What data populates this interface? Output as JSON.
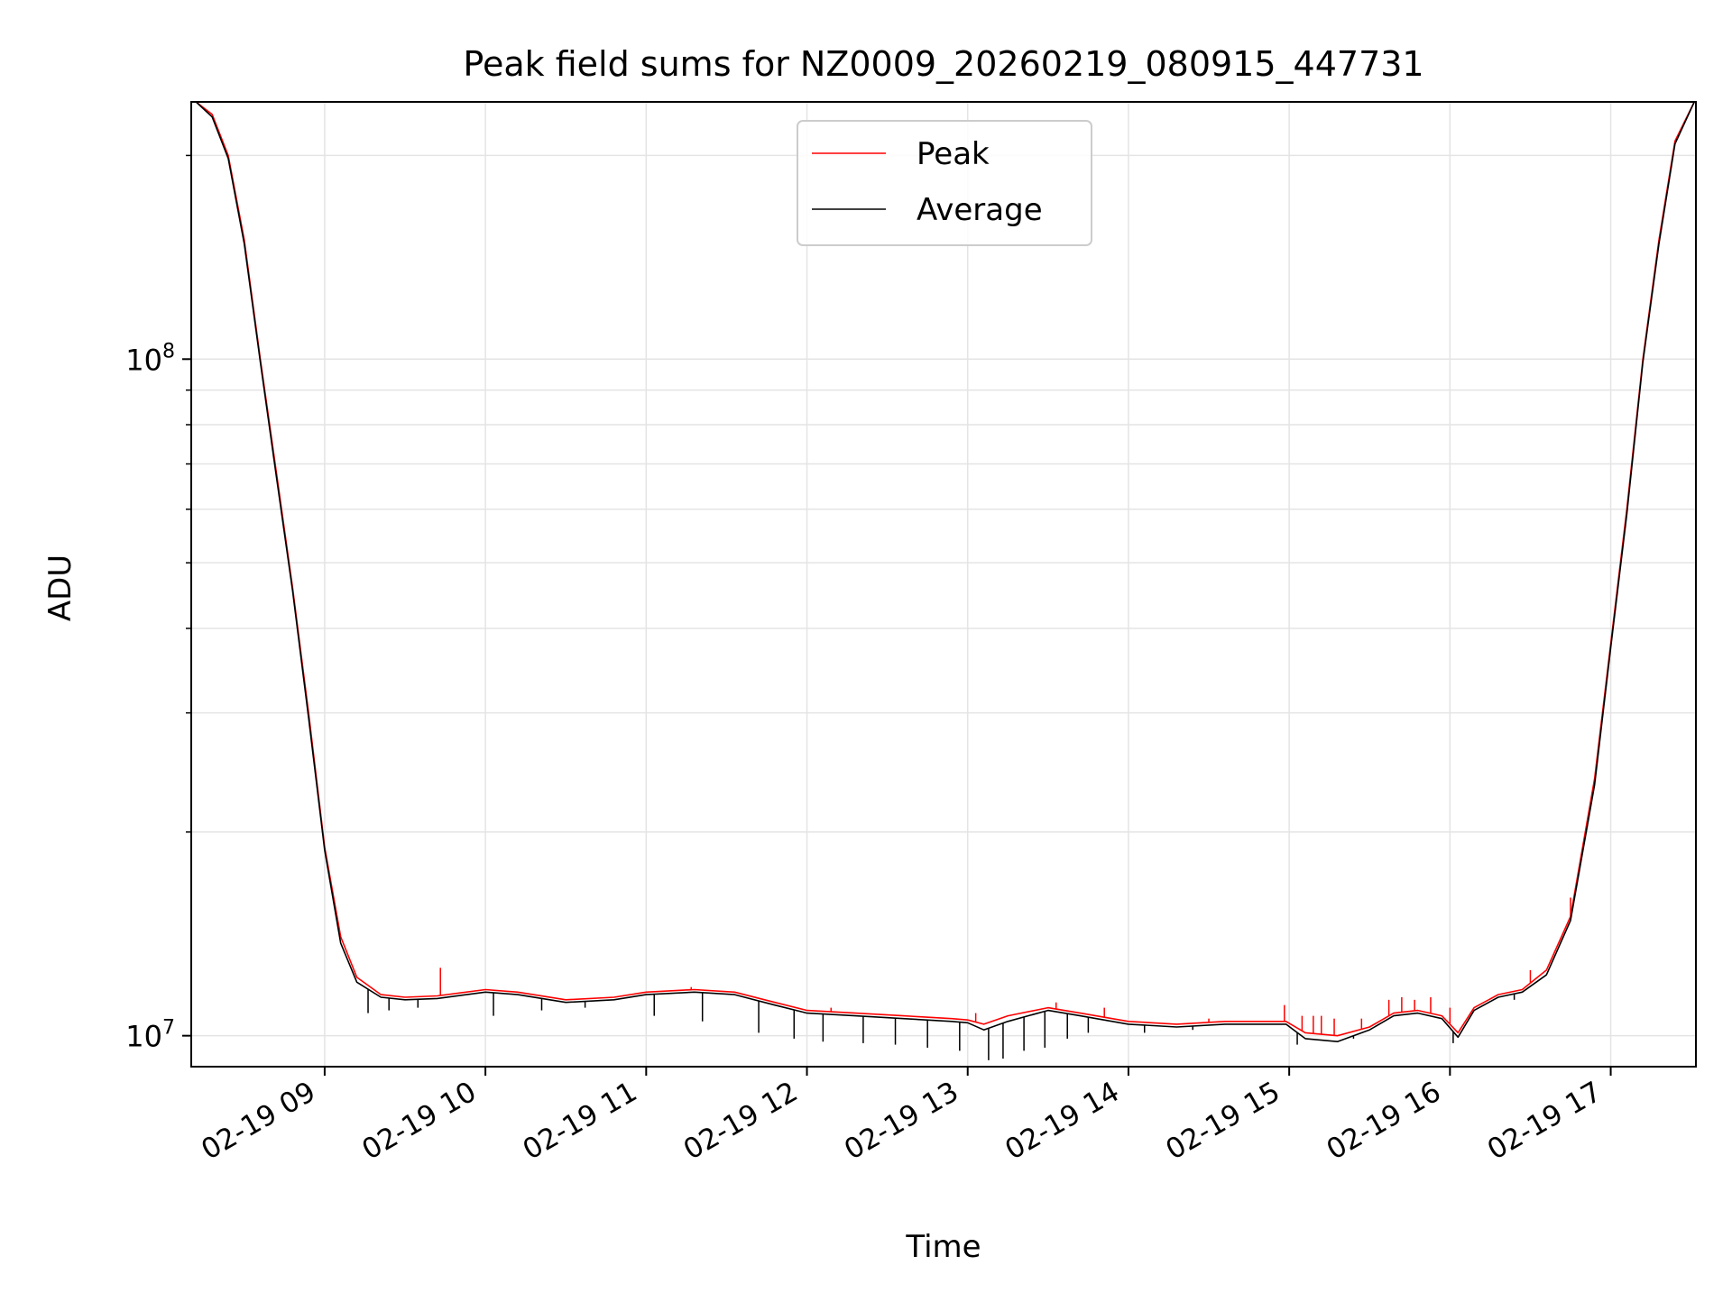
{
  "chart_data": {
    "type": "line",
    "title": "Peak field sums for NZ0009_20260219_080915_447731",
    "xlabel": "Time",
    "ylabel": "ADU",
    "yscale": "log",
    "xlim_hours": [
      8.17,
      17.53
    ],
    "ylim": [
      9000000,
      240000000
    ],
    "grid": true,
    "legend_position": "upper center",
    "x_tick_labels": [
      "02-19 09",
      "02-19 10",
      "02-19 11",
      "02-19 12",
      "02-19 13",
      "02-19 14",
      "02-19 15",
      "02-19 16",
      "02-19 17"
    ],
    "x_tick_hours": [
      9,
      10,
      11,
      12,
      13,
      14,
      15,
      16,
      17
    ],
    "y_major_ticks": [
      {
        "value": 10000000,
        "base": "10",
        "exp": "7"
      },
      {
        "value": 100000000,
        "base": "10",
        "exp": "8"
      }
    ],
    "y_minor_ticks": [
      20000000,
      30000000,
      40000000,
      50000000,
      60000000,
      70000000,
      80000000,
      90000000,
      200000000
    ],
    "series": [
      {
        "name": "Peak",
        "color": "#ff0000",
        "hours": [
          8.2,
          8.3,
          8.4,
          8.5,
          8.6,
          8.7,
          8.8,
          8.9,
          9.0,
          9.1,
          9.2,
          9.35,
          9.5,
          9.7,
          10.0,
          10.2,
          10.5,
          10.8,
          11.0,
          11.3,
          11.55,
          11.8,
          12.0,
          12.3,
          12.6,
          12.9,
          13.0,
          13.1,
          13.25,
          13.5,
          13.7,
          14.0,
          14.3,
          14.6,
          14.98,
          15.1,
          15.3,
          15.5,
          15.65,
          15.8,
          15.95,
          16.05,
          16.15,
          16.3,
          16.45,
          16.6,
          16.75,
          16.9,
          17.0,
          17.1,
          17.2,
          17.3,
          17.4,
          17.52
        ],
        "values": [
          240000000,
          230000000,
          200000000,
          150000000,
          100000000,
          68000000,
          46000000,
          30000000,
          19000000,
          14000000,
          12200000,
          11500000,
          11400000,
          11450000,
          11700000,
          11600000,
          11300000,
          11400000,
          11600000,
          11700000,
          11600000,
          11200000,
          10900000,
          10800000,
          10700000,
          10600000,
          10550000,
          10400000,
          10700000,
          11000000,
          10800000,
          10500000,
          10400000,
          10500000,
          10500000,
          10100000,
          10000000,
          10300000,
          10800000,
          10900000,
          10700000,
          10100000,
          11000000,
          11500000,
          11700000,
          12500000,
          15000000,
          24000000,
          38000000,
          60000000,
          100000000,
          150000000,
          210000000,
          240000000
        ],
        "spikes": [
          {
            "hour": 9.72,
            "value": 12600000
          },
          {
            "hour": 11.28,
            "value": 11800000
          },
          {
            "hour": 12.15,
            "value": 11000000
          },
          {
            "hour": 13.05,
            "value": 10800000
          },
          {
            "hour": 13.55,
            "value": 11200000
          },
          {
            "hour": 13.85,
            "value": 11000000
          },
          {
            "hour": 14.5,
            "value": 10600000
          },
          {
            "hour": 14.97,
            "value": 11100000
          },
          {
            "hour": 15.08,
            "value": 10700000
          },
          {
            "hour": 15.15,
            "value": 10700000
          },
          {
            "hour": 15.2,
            "value": 10700000
          },
          {
            "hour": 15.28,
            "value": 10600000
          },
          {
            "hour": 15.45,
            "value": 10600000
          },
          {
            "hour": 15.62,
            "value": 11300000
          },
          {
            "hour": 15.7,
            "value": 11400000
          },
          {
            "hour": 15.78,
            "value": 11300000
          },
          {
            "hour": 15.88,
            "value": 11400000
          },
          {
            "hour": 16.0,
            "value": 11000000
          },
          {
            "hour": 16.5,
            "value": 12500000
          },
          {
            "hour": 16.75,
            "value": 16000000
          }
        ]
      },
      {
        "name": "Average",
        "color": "#000000",
        "hours": [
          8.2,
          8.3,
          8.4,
          8.5,
          8.6,
          8.7,
          8.8,
          8.9,
          9.0,
          9.1,
          9.2,
          9.35,
          9.5,
          9.7,
          10.0,
          10.2,
          10.5,
          10.8,
          11.0,
          11.3,
          11.55,
          11.8,
          12.0,
          12.3,
          12.6,
          12.9,
          13.0,
          13.1,
          13.25,
          13.5,
          13.7,
          14.0,
          14.3,
          14.6,
          14.98,
          15.1,
          15.3,
          15.5,
          15.65,
          15.8,
          15.95,
          16.05,
          16.15,
          16.3,
          16.45,
          16.6,
          16.75,
          16.9,
          17.0,
          17.1,
          17.2,
          17.3,
          17.4,
          17.52
        ],
        "values": [
          240000000,
          228000000,
          198000000,
          148000000,
          99000000,
          67000000,
          45500000,
          29500000,
          18800000,
          13700000,
          12000000,
          11400000,
          11300000,
          11350000,
          11600000,
          11500000,
          11200000,
          11300000,
          11500000,
          11600000,
          11500000,
          11100000,
          10800000,
          10700000,
          10600000,
          10500000,
          10450000,
          10200000,
          10500000,
          10900000,
          10700000,
          10400000,
          10300000,
          10400000,
          10400000,
          9900000,
          9800000,
          10200000,
          10700000,
          10800000,
          10600000,
          9950000,
          10900000,
          11400000,
          11600000,
          12300000,
          14800000,
          23500000,
          37500000,
          59000000,
          99000000,
          148000000,
          208000000,
          240000000
        ],
        "dips": [
          {
            "hour": 9.27,
            "value": 10800000
          },
          {
            "hour": 9.4,
            "value": 10900000
          },
          {
            "hour": 9.58,
            "value": 11000000
          },
          {
            "hour": 10.05,
            "value": 10700000
          },
          {
            "hour": 10.35,
            "value": 10900000
          },
          {
            "hour": 10.62,
            "value": 11000000
          },
          {
            "hour": 11.05,
            "value": 10700000
          },
          {
            "hour": 11.35,
            "value": 10500000
          },
          {
            "hour": 11.7,
            "value": 10100000
          },
          {
            "hour": 11.92,
            "value": 9900000
          },
          {
            "hour": 12.1,
            "value": 9800000
          },
          {
            "hour": 12.35,
            "value": 9750000
          },
          {
            "hour": 12.55,
            "value": 9700000
          },
          {
            "hour": 12.75,
            "value": 9600000
          },
          {
            "hour": 12.95,
            "value": 9500000
          },
          {
            "hour": 13.13,
            "value": 9200000
          },
          {
            "hour": 13.22,
            "value": 9250000
          },
          {
            "hour": 13.35,
            "value": 9500000
          },
          {
            "hour": 13.48,
            "value": 9600000
          },
          {
            "hour": 13.62,
            "value": 9900000
          },
          {
            "hour": 13.75,
            "value": 10100000
          },
          {
            "hour": 14.1,
            "value": 10100000
          },
          {
            "hour": 14.4,
            "value": 10200000
          },
          {
            "hour": 15.05,
            "value": 9700000
          },
          {
            "hour": 15.4,
            "value": 9900000
          },
          {
            "hour": 16.02,
            "value": 9750000
          },
          {
            "hour": 16.4,
            "value": 11300000
          }
        ]
      }
    ]
  }
}
